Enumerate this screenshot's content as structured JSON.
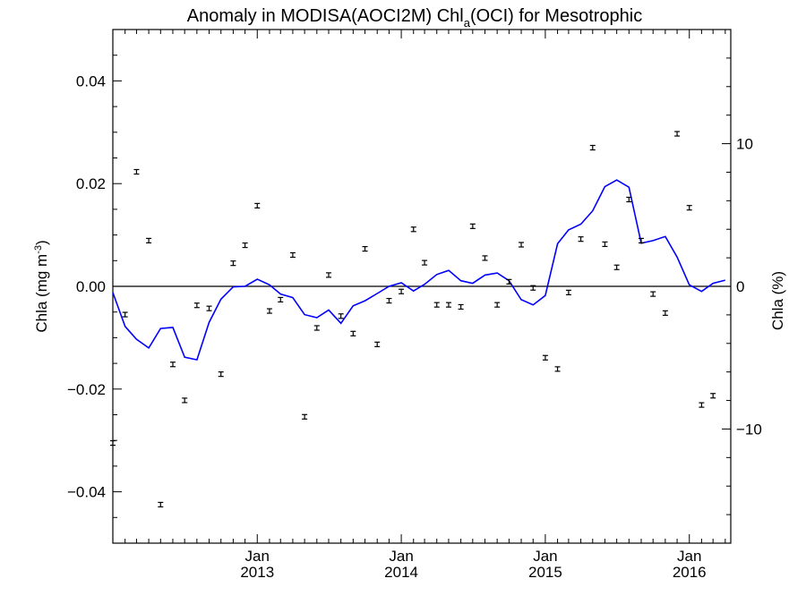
{
  "chart_data": {
    "type": "scatter",
    "title_main": "Anomaly in MODISA(AOCI2M) Chl",
    "title_sub": "a",
    "title_tail": "(OCI) for Mesotrophic",
    "ylabel_left_main": "Chla (mg m",
    "ylabel_left_sup": "-3",
    "ylabel_left_tail": ")",
    "ylabel_right": "Chla (%)",
    "xlim": [
      "2012-01-01",
      "2016-04-15"
    ],
    "ylim": [
      -0.05,
      0.05
    ],
    "ylim_right_percent": [
      -18,
      18
    ],
    "x_ticks": [
      {
        "date": "2013-01-01",
        "line1": "Jan",
        "line2": "2013"
      },
      {
        "date": "2014-01-01",
        "line1": "Jan",
        "line2": "2014"
      },
      {
        "date": "2015-01-01",
        "line1": "Jan",
        "line2": "2015"
      },
      {
        "date": "2016-01-01",
        "line1": "Jan",
        "line2": "2016"
      }
    ],
    "y_ticks_left": [
      {
        "value": -0.04,
        "label": "−0.04"
      },
      {
        "value": -0.02,
        "label": "−0.02"
      },
      {
        "value": 0.0,
        "label": "0.00"
      },
      {
        "value": 0.02,
        "label": "0.02"
      },
      {
        "value": 0.04,
        "label": "0.04"
      }
    ],
    "y_ticks_right": [
      {
        "value": -10,
        "label": "−10"
      },
      {
        "value": 0,
        "label": "0"
      },
      {
        "value": 10,
        "label": "10"
      }
    ],
    "series": [
      {
        "style": "points-with-errorbars",
        "color": "#000000",
        "points": [
          {
            "x": "2012-01-01",
            "y": -0.0305
          },
          {
            "x": "2012-02-01",
            "y": -0.0055
          },
          {
            "x": "2012-03-01",
            "y": 0.0223
          },
          {
            "x": "2012-04-01",
            "y": 0.0089
          },
          {
            "x": "2012-05-01",
            "y": -0.0425
          },
          {
            "x": "2012-06-01",
            "y": -0.0152
          },
          {
            "x": "2012-07-01",
            "y": -0.0222
          },
          {
            "x": "2012-08-01",
            "y": -0.0037
          },
          {
            "x": "2012-09-01",
            "y": -0.0043
          },
          {
            "x": "2012-10-01",
            "y": -0.0171
          },
          {
            "x": "2012-11-01",
            "y": 0.0045
          },
          {
            "x": "2012-12-01",
            "y": 0.008
          },
          {
            "x": "2013-01-01",
            "y": 0.0157
          },
          {
            "x": "2013-02-01",
            "y": -0.0048
          },
          {
            "x": "2013-03-01",
            "y": -0.0026
          },
          {
            "x": "2013-04-01",
            "y": 0.0061
          },
          {
            "x": "2013-05-01",
            "y": -0.0254
          },
          {
            "x": "2013-06-01",
            "y": -0.0081
          },
          {
            "x": "2013-07-01",
            "y": 0.0022
          },
          {
            "x": "2013-08-01",
            "y": -0.0058
          },
          {
            "x": "2013-09-01",
            "y": -0.0092
          },
          {
            "x": "2013-10-01",
            "y": 0.0073
          },
          {
            "x": "2013-11-01",
            "y": -0.0113
          },
          {
            "x": "2013-12-01",
            "y": -0.0028
          },
          {
            "x": "2014-01-01",
            "y": -0.001
          },
          {
            "x": "2014-02-01",
            "y": 0.0111
          },
          {
            "x": "2014-03-01",
            "y": 0.0046
          },
          {
            "x": "2014-04-01",
            "y": -0.0036
          },
          {
            "x": "2014-05-01",
            "y": -0.0036
          },
          {
            "x": "2014-06-01",
            "y": -0.004
          },
          {
            "x": "2014-07-01",
            "y": 0.0117
          },
          {
            "x": "2014-08-01",
            "y": 0.0055
          },
          {
            "x": "2014-09-01",
            "y": -0.0036
          },
          {
            "x": "2014-10-01",
            "y": 0.0009
          },
          {
            "x": "2014-11-01",
            "y": 0.0081
          },
          {
            "x": "2014-12-01",
            "y": -0.0003
          },
          {
            "x": "2015-01-01",
            "y": -0.0139
          },
          {
            "x": "2015-02-01",
            "y": -0.0161
          },
          {
            "x": "2015-03-01",
            "y": -0.0012
          },
          {
            "x": "2015-04-01",
            "y": 0.0092
          },
          {
            "x": "2015-05-01",
            "y": 0.027
          },
          {
            "x": "2015-06-01",
            "y": 0.0082
          },
          {
            "x": "2015-07-01",
            "y": 0.0037
          },
          {
            "x": "2015-08-01",
            "y": 0.0169
          },
          {
            "x": "2015-09-01",
            "y": 0.0089
          },
          {
            "x": "2015-10-01",
            "y": -0.0015
          },
          {
            "x": "2015-11-01",
            "y": -0.0052
          },
          {
            "x": "2015-12-01",
            "y": 0.0297
          },
          {
            "x": "2016-01-01",
            "y": 0.0153
          },
          {
            "x": "2016-02-01",
            "y": -0.0231
          },
          {
            "x": "2016-03-01",
            "y": -0.0213
          }
        ]
      },
      {
        "style": "line",
        "color": "#0000ff",
        "points": [
          {
            "x": "2012-01-01",
            "y": -0.0012
          },
          {
            "x": "2012-02-01",
            "y": -0.0078
          },
          {
            "x": "2012-03-01",
            "y": -0.0103
          },
          {
            "x": "2012-04-01",
            "y": -0.012
          },
          {
            "x": "2012-05-01",
            "y": -0.0082
          },
          {
            "x": "2012-06-01",
            "y": -0.008
          },
          {
            "x": "2012-07-01",
            "y": -0.0138
          },
          {
            "x": "2012-08-01",
            "y": -0.0143
          },
          {
            "x": "2012-09-01",
            "y": -0.007
          },
          {
            "x": "2012-10-01",
            "y": -0.0025
          },
          {
            "x": "2012-11-01",
            "y": -0.0001
          },
          {
            "x": "2012-12-01",
            "y": 0.0
          },
          {
            "x": "2013-01-01",
            "y": 0.0014
          },
          {
            "x": "2013-02-01",
            "y": 0.0003
          },
          {
            "x": "2013-03-01",
            "y": -0.0015
          },
          {
            "x": "2013-04-01",
            "y": -0.0022
          },
          {
            "x": "2013-05-01",
            "y": -0.0055
          },
          {
            "x": "2013-06-01",
            "y": -0.0061
          },
          {
            "x": "2013-07-01",
            "y": -0.0046
          },
          {
            "x": "2013-08-01",
            "y": -0.0072
          },
          {
            "x": "2013-09-01",
            "y": -0.0038
          },
          {
            "x": "2013-10-01",
            "y": -0.0028
          },
          {
            "x": "2013-11-01",
            "y": -0.0014
          },
          {
            "x": "2013-12-01",
            "y": 0.0
          },
          {
            "x": "2014-01-01",
            "y": 0.0007
          },
          {
            "x": "2014-02-01",
            "y": -0.0009
          },
          {
            "x": "2014-03-01",
            "y": 0.0004
          },
          {
            "x": "2014-04-01",
            "y": 0.0023
          },
          {
            "x": "2014-05-01",
            "y": 0.0031
          },
          {
            "x": "2014-06-01",
            "y": 0.0011
          },
          {
            "x": "2014-07-01",
            "y": 0.0006
          },
          {
            "x": "2014-08-01",
            "y": 0.0022
          },
          {
            "x": "2014-09-01",
            "y": 0.0026
          },
          {
            "x": "2014-10-01",
            "y": 0.0011
          },
          {
            "x": "2014-11-01",
            "y": -0.0026
          },
          {
            "x": "2014-12-01",
            "y": -0.0036
          },
          {
            "x": "2015-01-01",
            "y": -0.0018
          },
          {
            "x": "2015-02-01",
            "y": 0.0083
          },
          {
            "x": "2015-03-01",
            "y": 0.011
          },
          {
            "x": "2015-04-01",
            "y": 0.0121
          },
          {
            "x": "2015-05-01",
            "y": 0.0147
          },
          {
            "x": "2015-06-01",
            "y": 0.0194
          },
          {
            "x": "2015-07-01",
            "y": 0.0207
          },
          {
            "x": "2015-08-01",
            "y": 0.0193
          },
          {
            "x": "2015-09-01",
            "y": 0.0084
          },
          {
            "x": "2015-10-01",
            "y": 0.0089
          },
          {
            "x": "2015-11-01",
            "y": 0.0097
          },
          {
            "x": "2015-12-01",
            "y": 0.0057
          },
          {
            "x": "2016-01-01",
            "y": 0.0003
          },
          {
            "x": "2016-02-01",
            "y": -0.001
          },
          {
            "x": "2016-03-01",
            "y": 0.0006
          },
          {
            "x": "2016-04-01",
            "y": 0.0012
          }
        ]
      }
    ],
    "zero_line": true,
    "grid": false,
    "legend": "none"
  }
}
